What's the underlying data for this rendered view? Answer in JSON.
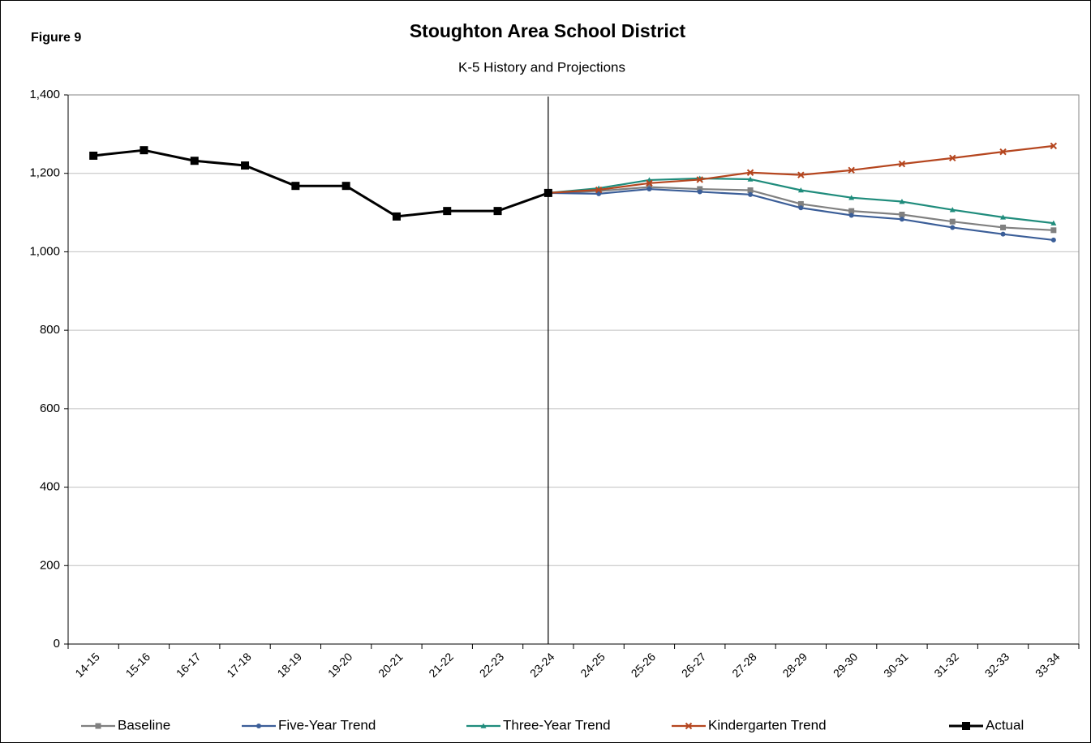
{
  "chart_data": {
    "type": "line",
    "figure_label": "Figure 9",
    "title": "Stoughton Area School District",
    "subtitle": "K-5 History and Projections",
    "categories": [
      "14-15",
      "15-16",
      "16-17",
      "17-18",
      "18-19",
      "19-20",
      "20-21",
      "21-22",
      "22-23",
      "23-24",
      "24-25",
      "25-26",
      "26-27",
      "27-28",
      "28-29",
      "29-30",
      "30-31",
      "31-32",
      "32-33",
      "33-34"
    ],
    "ylim": [
      0,
      1400
    ],
    "yticks": [
      0,
      200,
      400,
      600,
      800,
      {
        "value": 1000,
        "label": "1,000"
      },
      {
        "value": 1200,
        "label": "1,200"
      },
      {
        "value": 1400,
        "label": "1,400"
      }
    ],
    "grid": true,
    "legend": "bottom",
    "series": [
      {
        "name": "Baseline",
        "color": "#808080",
        "marker": "square",
        "values": [
          null,
          null,
          null,
          null,
          null,
          null,
          null,
          null,
          null,
          1150,
          1155,
          1165,
          1160,
          1157,
          1122,
          1104,
          1095,
          1077,
          1062,
          1055
        ]
      },
      {
        "name": "Five-Year Trend",
        "color": "#3b5e98",
        "marker": "circle",
        "values": [
          null,
          null,
          null,
          null,
          null,
          null,
          null,
          null,
          null,
          1150,
          1148,
          1160,
          1153,
          1146,
          1112,
          1093,
          1083,
          1062,
          1045,
          1030
        ]
      },
      {
        "name": "Three-Year Trend",
        "color": "#1f8c7c",
        "marker": "triangle",
        "values": [
          null,
          null,
          null,
          null,
          null,
          null,
          null,
          null,
          null,
          1150,
          1162,
          1183,
          1187,
          1185,
          1157,
          1138,
          1128,
          1107,
          1088,
          1073
        ]
      },
      {
        "name": "Kindergarten Trend",
        "color": "#b5461f",
        "marker": "x",
        "values": [
          null,
          null,
          null,
          null,
          null,
          null,
          null,
          null,
          null,
          1150,
          1158,
          1175,
          1184,
          1202,
          1196,
          1208,
          1224,
          1239,
          1255,
          1270
        ]
      },
      {
        "name": "Actual",
        "color": "#000000",
        "marker": "square",
        "values": [
          1245,
          1259,
          1232,
          1220,
          1168,
          1168,
          1090,
          1104,
          1104,
          1150,
          null,
          null,
          null,
          null,
          null,
          null,
          null,
          null,
          null,
          null
        ]
      }
    ]
  }
}
